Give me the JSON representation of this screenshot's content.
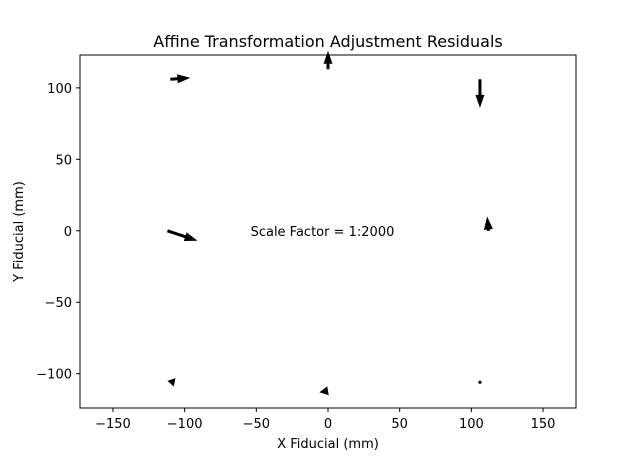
{
  "chart_data": {
    "type": "quiver",
    "title": "Affine Transformation Adjustment Residuals",
    "xlabel": "X Fiducial (mm)",
    "ylabel": "Y Fiducial (mm)",
    "xlim": [
      -173,
      173
    ],
    "ylim": [
      -124,
      123
    ],
    "xticks": [
      -150,
      -100,
      -50,
      0,
      50,
      100,
      150
    ],
    "yticks": [
      -100,
      -50,
      0,
      50,
      100
    ],
    "xtick_labels": [
      "−150",
      "−100",
      "−50",
      "0",
      "50",
      "100",
      "150"
    ],
    "ytick_labels": [
      "−100",
      "−50",
      "0",
      "50",
      "100"
    ],
    "annotation": {
      "text": "Scale Factor = 1:2000",
      "x": -54,
      "y": 0
    },
    "arrow_color": "#000000",
    "arrows": [
      {
        "x": -110,
        "y": 106,
        "u": 14,
        "v": 1
      },
      {
        "x": 0,
        "y": 113,
        "u": 0,
        "v": 13
      },
      {
        "x": 106,
        "y": 106,
        "u": 0,
        "v": -20
      },
      {
        "x": -112,
        "y": 0,
        "u": 21,
        "v": -7
      },
      {
        "x": 112,
        "y": 0,
        "u": -1,
        "v": 10
      },
      {
        "x": -107,
        "y": -106,
        "u": -5,
        "v": 1
      },
      {
        "x": 0,
        "y": -112,
        "u": -6,
        "v": -1
      },
      {
        "x": 106,
        "y": -106,
        "u": 0,
        "v": 0
      }
    ]
  }
}
